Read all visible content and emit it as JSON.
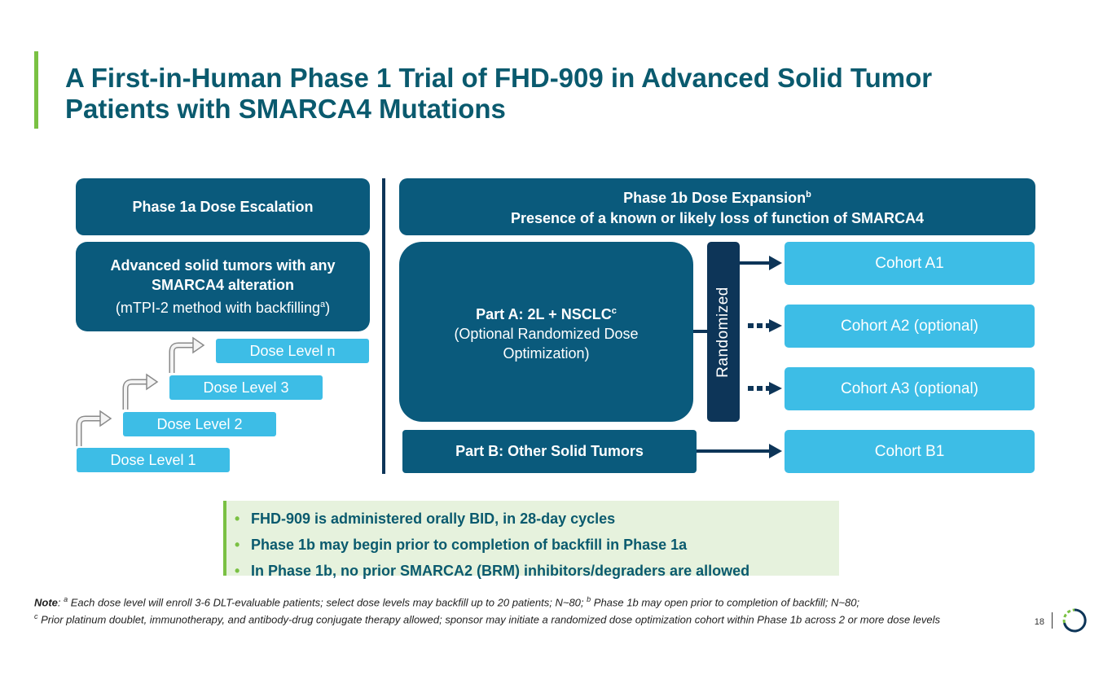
{
  "title": {
    "line1": "A First-in-Human Phase 1 Trial of FHD-909 in Advanced Solid Tumor",
    "line2": "Patients with SMARCA4 Mutations"
  },
  "phase1a": {
    "header": "Phase 1a Dose Escalation",
    "population_bold_line1": "Advanced solid tumors with any",
    "population_bold_line2": "SMARCA4 alteration",
    "method": "(mTPI-2 method with backfilling",
    "method_sup": "a",
    "method_end": ")",
    "dose_levels": [
      "Dose Level 1",
      "Dose Level 2",
      "Dose Level 3",
      "Dose Level n"
    ]
  },
  "phase1b": {
    "header_line1": "Phase 1b Dose Expansion",
    "header_sup": "b",
    "header_line2": "Presence of a known or likely loss of function of SMARCA4",
    "part_a_title": "Part A: 2L + NSCLC",
    "part_a_sup": "c",
    "part_a_sub1": "(Optional Randomized Dose",
    "part_a_sub2": "Optimization)",
    "part_b": "Part B: Other Solid Tumors",
    "randomized": "Randomized",
    "cohorts": [
      "Cohort A1",
      "Cohort A2 (optional)",
      "Cohort A3 (optional)",
      "Cohort B1"
    ]
  },
  "bullets": [
    "FHD-909 is administered orally BID, in 28-day cycles",
    "Phase 1b may begin prior to completion of backfill in Phase 1a",
    "In Phase 1b, no prior SMARCA2 (BRM) inhibitors/degraders are allowed"
  ],
  "note": {
    "label": "Note",
    "sup_a": "a",
    "text_a": " Each dose level will enroll 3-6 DLT-evaluable patients; select dose levels may backfill up to 20 patients; N~80; ",
    "sup_b": "b",
    "text_b": " Phase 1b may open prior to completion of backfill; N~80;",
    "sup_c": "c",
    "text_c": " Prior platinum doublet, immunotherapy, and antibody-drug conjugate therapy allowed; sponsor may initiate a randomized dose optimization cohort within Phase 1b across 2 or more dose levels"
  },
  "page_number": "18",
  "colors": {
    "dark_teal": "#0a5a7c",
    "navy": "#0d3558",
    "light_blue": "#3dbde6",
    "green_accent": "#7ac143",
    "title_color": "#0a5a6e"
  }
}
